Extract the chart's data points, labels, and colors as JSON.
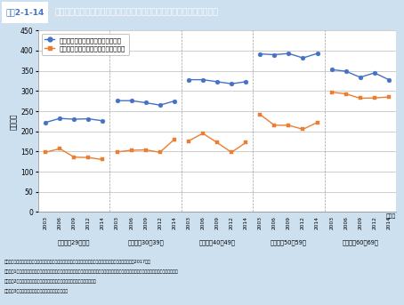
{
  "title_box": "図表2-1-14",
  "title_text": "世帯主年齢階級別　世帯主就業状況別　平均等価可処分所得金額　推移",
  "ylabel": "（万円）",
  "background_color": "#cde0f0",
  "plot_background": "#ffffff",
  "title_bg": "#4472c4",
  "groups": [
    {
      "label": "世帯主が29歳以下",
      "years": [
        "2003",
        "2006",
        "2009",
        "2012",
        "2014"
      ],
      "regular": [
        222,
        232,
        230,
        231,
        226
      ],
      "nonregular": [
        148,
        157,
        136,
        135,
        130
      ]
    },
    {
      "label": "世帯主が30～39歳",
      "years": [
        "2003",
        "2006",
        "2009",
        "2012",
        "2014"
      ],
      "regular": [
        276,
        276,
        271,
        265,
        275
      ],
      "nonregular": [
        149,
        153,
        154,
        148,
        180
      ]
    },
    {
      "label": "世帯主が40～49歳",
      "years": [
        "2003",
        "2006",
        "2009",
        "2012",
        "2014"
      ],
      "regular": [
        328,
        328,
        323,
        318,
        323
      ],
      "nonregular": [
        176,
        195,
        172,
        148,
        172
      ]
    },
    {
      "label": "世帯主が50～59歳",
      "years": [
        "2003",
        "2006",
        "2009",
        "2012",
        "2014"
      ],
      "regular": [
        392,
        390,
        393,
        382,
        393
      ],
      "nonregular": [
        242,
        215,
        215,
        205,
        222
      ]
    },
    {
      "label": "世帯主が60～69歳",
      "years": [
        "2003",
        "2006",
        "2009",
        "2012",
        "2014"
      ],
      "regular": [
        353,
        349,
        334,
        345,
        328
      ],
      "nonregular": [
        297,
        293,
        282,
        283,
        285
      ]
    }
  ],
  "legend_regular": "世帯主が正規雇用労働者である世帯",
  "legend_nonregular": "世帯主が非正規雇用労働者である世帯",
  "regular_color": "#4472c4",
  "nonregular_color": "#ed7d31",
  "ylim": [
    0,
    450
  ],
  "yticks": [
    0,
    50,
    100,
    150,
    200,
    250,
    300,
    350,
    400,
    450
  ],
  "notes_line1": "資料：厚生労働省政策統括官付政策評価官室委託　みずほ情報総研株式会社「家計所得の分析に関する報告書」（2017年）",
  "notes_line2": "（注）　1．非正規雇用労働者：勤め先の呼称が「パート」「アルバイト」「労働者派遣事業所の派遣社員」「契約社員」「嘱託」「その他」である者",
  "notes_line3": "　　　　2．正規雇用労働者：勤め先の呼称が「正規の職員・従業員」である者",
  "notes_line4": "　　　　3．等価可処分所得金額不詳の世帯員は除く。"
}
